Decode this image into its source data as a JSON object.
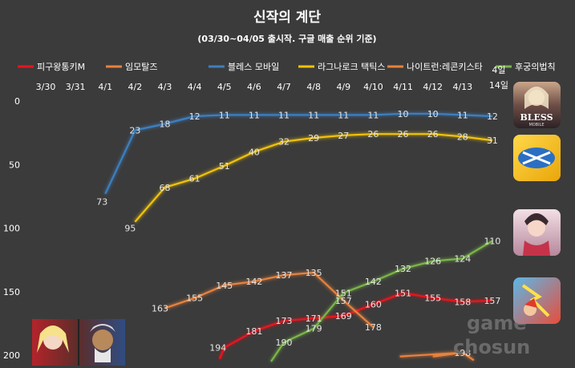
{
  "chart_data": {
    "type": "line",
    "title": "신작의 계단",
    "subtitle": "(03/30~04/05 출시작. 구글 매출 순위 기준)",
    "categories": [
      "3/30",
      "3/31",
      "4/1",
      "4/2",
      "4/3",
      "4/4",
      "4/5",
      "4/6",
      "4/7",
      "4/8",
      "4/9",
      "4/10",
      "4/11",
      "4/12",
      "4/13",
      "4/14"
    ],
    "category_label_overrides": {
      "15": [
        "4일",
        "14일"
      ]
    },
    "y_reversed": true,
    "ylim": [
      0,
      200
    ],
    "yticks": [
      0,
      50,
      100,
      150,
      200
    ],
    "grid": false,
    "legend_position": "top",
    "series": [
      {
        "name": "피구왕통키M",
        "color": "#e8141c",
        "values": [
          null,
          null,
          null,
          null,
          null,
          null,
          194,
          181,
          173,
          171,
          169,
          160,
          151,
          155,
          158,
          157
        ]
      },
      {
        "name": "임모탈즈",
        "color": "#e8823c",
        "values": [
          null,
          null,
          null,
          null,
          163,
          155,
          145,
          142,
          137,
          135,
          157,
          178,
          null,
          null,
          198,
          null
        ]
      },
      {
        "name": "블레스 모바일",
        "color": "#3d7fc1",
        "values": [
          null,
          null,
          73,
          23,
          18,
          12,
          11,
          11,
          11,
          11,
          11,
          11,
          10,
          10,
          11,
          12
        ]
      },
      {
        "name": "라그나로크 택틱스",
        "color": "#f0c20a",
        "values": [
          null,
          null,
          null,
          95,
          68,
          61,
          51,
          40,
          32,
          29,
          27,
          26,
          26,
          26,
          28,
          31
        ]
      },
      {
        "name": "나이트런:레콘키스타",
        "color": "#e8823c",
        "values": [
          null,
          null,
          null,
          null,
          null,
          null,
          null,
          null,
          null,
          null,
          null,
          null,
          null,
          null,
          null,
          null
        ]
      },
      {
        "name": "후궁의법칙",
        "color": "#7ab648",
        "values": [
          null,
          null,
          null,
          null,
          null,
          null,
          null,
          null,
          190,
          179,
          151,
          142,
          132,
          126,
          124,
          110
        ]
      }
    ],
    "label_values": [
      {
        "series": 0,
        "points": [
          194,
          181,
          173,
          171,
          169,
          160,
          151,
          155,
          158,
          157
        ]
      },
      {
        "series": 1,
        "points": [
          163,
          155,
          145,
          142,
          137,
          135,
          157,
          178,
          198
        ]
      },
      {
        "series": 2,
        "points": [
          73,
          23,
          18,
          12,
          11,
          11,
          11,
          11,
          11,
          11,
          10,
          10,
          11,
          12
        ]
      },
      {
        "series": 3,
        "points": [
          95,
          68,
          61,
          51,
          40,
          32,
          29,
          27,
          26,
          26,
          26,
          28,
          31
        ]
      },
      {
        "series": 5,
        "points": [
          190,
          179,
          151,
          142,
          132,
          126,
          124,
          110
        ]
      }
    ]
  },
  "watermark": {
    "line1": "game",
    "line2": "chosun"
  },
  "images": [
    {
      "name": "bless-mobile-icon",
      "caption": "BLESS",
      "sub": "MOBILE"
    },
    {
      "name": "ragnarok-tactics-icon",
      "caption": ""
    },
    {
      "name": "harem-rule-icon",
      "caption": ""
    },
    {
      "name": "knightrun-icon",
      "caption": ""
    },
    {
      "name": "immortals-icon",
      "caption": ""
    }
  ]
}
